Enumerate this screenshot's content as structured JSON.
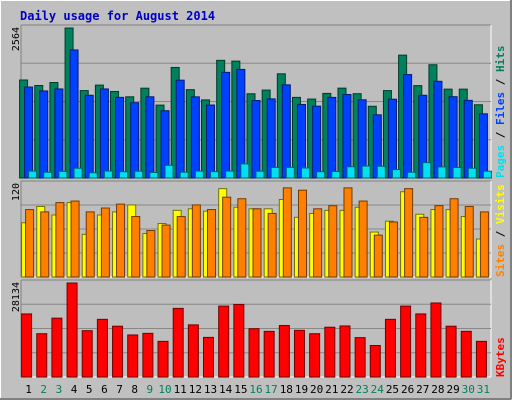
{
  "title": "Daily usage for August 2014",
  "colors": {
    "background": "#C0C0C0",
    "plot_background": "#BEBEBE",
    "title": "#0000C8",
    "hits": "#00805C",
    "files": "#0040FF",
    "pages": "#00E0F0",
    "visits": "#FFFF00",
    "sites": "#FF8000",
    "kbytes": "#FF0000",
    "weekend_label": "#00805C",
    "weekday_label": "#000000",
    "grid": "#888888"
  },
  "chart_data": [
    {
      "type": "bar",
      "name": "hits-files-pages",
      "categories": [
        "1",
        "2",
        "3",
        "4",
        "5",
        "6",
        "7",
        "8",
        "9",
        "10",
        "11",
        "12",
        "13",
        "14",
        "15",
        "16",
        "17",
        "18",
        "19",
        "20",
        "21",
        "22",
        "23",
        "24",
        "25",
        "26",
        "27",
        "28",
        "29",
        "30",
        "31"
      ],
      "weekend_days": [
        "2",
        "3",
        "9",
        "10",
        "16",
        "17",
        "23",
        "24",
        "30",
        "31"
      ],
      "y_max_label": "2564",
      "ylim": [
        0,
        2564
      ],
      "y_axis_parts": [
        {
          "text": "Pages",
          "color_key": "pages"
        },
        {
          "text": " / ",
          "color_key": "weekday_label"
        },
        {
          "text": "Files",
          "color_key": "files"
        },
        {
          "text": " / ",
          "color_key": "weekday_label"
        },
        {
          "text": "Hits",
          "color_key": "hits"
        }
      ],
      "series": [
        {
          "name": "Hits",
          "color_key": "hits",
          "values": [
            1675,
            1581,
            1632,
            2564,
            1494,
            1588,
            1479,
            1388,
            1535,
            1246,
            1889,
            1510,
            1335,
            2011,
            1998,
            1440,
            1503,
            1781,
            1378,
            1349,
            1446,
            1536,
            1441,
            1226,
            1494,
            2100,
            1579,
            1936,
            1519,
            1519,
            1252
          ]
        },
        {
          "name": "Files",
          "color_key": "files",
          "values": [
            1555,
            1488,
            1522,
            2189,
            1414,
            1522,
            1378,
            1287,
            1388,
            1150,
            1672,
            1387,
            1247,
            1806,
            1856,
            1324,
            1352,
            1592,
            1257,
            1228,
            1378,
            1427,
            1337,
            1080,
            1347,
            1768,
            1414,
            1653,
            1390,
            1327,
            1097
          ]
        },
        {
          "name": "Pages",
          "color_key": "pages",
          "values": [
            118,
            98,
            113,
            167,
            89,
            119,
            108,
            116,
            94,
            217,
            99,
            118,
            109,
            118,
            241,
            116,
            181,
            182,
            171,
            108,
            112,
            192,
            204,
            200,
            144,
            98,
            263,
            189,
            180,
            167,
            116
          ]
        }
      ]
    },
    {
      "type": "bar",
      "name": "sites-visits",
      "categories": [
        "1",
        "2",
        "3",
        "4",
        "5",
        "6",
        "7",
        "8",
        "9",
        "10",
        "11",
        "12",
        "13",
        "14",
        "15",
        "16",
        "17",
        "18",
        "19",
        "20",
        "21",
        "22",
        "23",
        "24",
        "25",
        "26",
        "27",
        "28",
        "29",
        "30",
        "31"
      ],
      "y_max_label": "120",
      "ylim": [
        0,
        120
      ],
      "y_axis_parts": [
        {
          "text": "Sites",
          "color_key": "sites"
        },
        {
          "text": " / ",
          "color_key": "weekday_label"
        },
        {
          "text": "Visits",
          "color_key": "visits"
        }
      ],
      "series": [
        {
          "name": "Visits",
          "color_key": "visits",
          "values": [
            70,
            91,
            80,
            96,
            55,
            80,
            84,
            93,
            56,
            69,
            86,
            88,
            85,
            114,
            90,
            88,
            88,
            100,
            77,
            82,
            86,
            86,
            90,
            58,
            72,
            110,
            81,
            87,
            87,
            78,
            49
          ]
        },
        {
          "name": "Sites",
          "color_key": "sites",
          "values": [
            87,
            84,
            96,
            98,
            84,
            89,
            94,
            78,
            60,
            67,
            78,
            93,
            87,
            103,
            101,
            88,
            82,
            115,
            112,
            88,
            92,
            115,
            98,
            54,
            71,
            114,
            77,
            92,
            101,
            91,
            84
          ]
        }
      ]
    },
    {
      "type": "bar",
      "name": "kbytes",
      "categories": [
        "1",
        "2",
        "3",
        "4",
        "5",
        "6",
        "7",
        "8",
        "9",
        "10",
        "11",
        "12",
        "13",
        "14",
        "15",
        "16",
        "17",
        "18",
        "19",
        "20",
        "21",
        "22",
        "23",
        "24",
        "25",
        "26",
        "27",
        "28",
        "29",
        "30",
        "31"
      ],
      "y_max_label": "28134",
      "ylim": [
        0,
        28134
      ],
      "y_axis_parts": [
        {
          "text": "KBytes",
          "color_key": "kbytes"
        }
      ],
      "series": [
        {
          "name": "KBytes",
          "color_key": "kbytes",
          "values": [
            18882,
            12957,
            17608,
            28134,
            13865,
            17256,
            15200,
            12579,
            13069,
            10664,
            20542,
            15602,
            11855,
            21218,
            21718,
            14456,
            13662,
            15410,
            13966,
            12957,
            14900,
            15282,
            11786,
            9426,
            17256,
            21218,
            18882,
            22154,
            15200,
            13662,
            10664
          ]
        }
      ]
    }
  ]
}
